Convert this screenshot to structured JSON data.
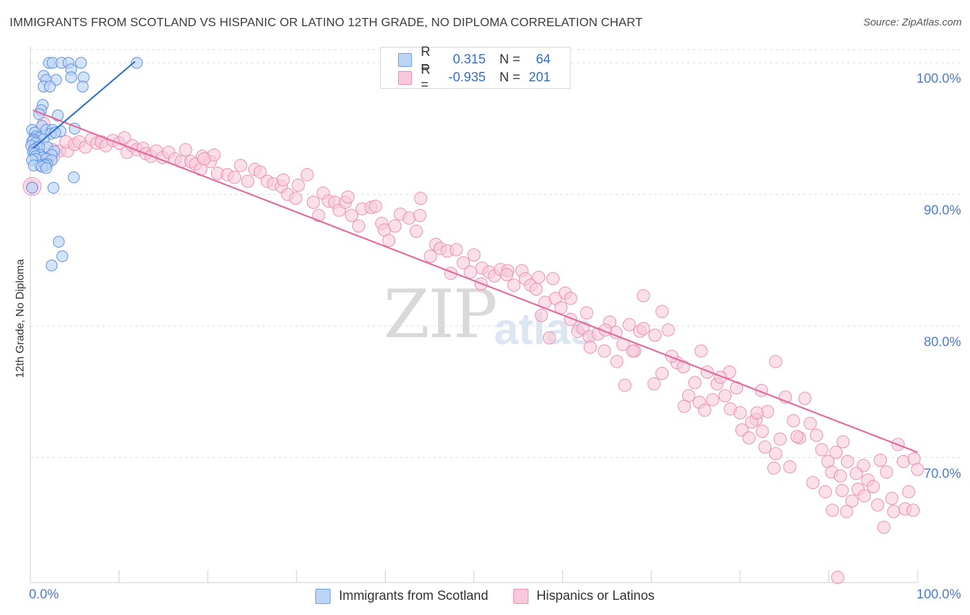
{
  "header": {
    "title": "IMMIGRANTS FROM SCOTLAND VS HISPANIC OR LATINO 12TH GRADE, NO DIPLOMA CORRELATION CHART",
    "source": "Source: ZipAtlas.com"
  },
  "watermark": {
    "zip": "ZIP",
    "atlas": "atlas"
  },
  "colors": {
    "blue_fill": "#bcd4f7",
    "blue_stroke": "#5b8fe0",
    "blue_line": "#2f72d4",
    "pink_fill": "#f8c9da",
    "pink_stroke": "#ec8fb0",
    "pink_line": "#e4699a",
    "tick_text": "#4a7bd0",
    "grid": "#dddddd"
  },
  "stats_legend": {
    "rows": [
      {
        "r_label": "R =",
        "r_value": "0.315",
        "n_label": "N =",
        "n_value": "64"
      },
      {
        "r_label": "R =",
        "r_value": "-0.935",
        "n_label": "N =",
        "n_value": "201"
      }
    ]
  },
  "chart_data": {
    "type": "scatter",
    "title": "IMMIGRANTS FROM SCOTLAND VS HISPANIC OR LATINO 12TH GRADE, NO DIPLOMA CORRELATION CHART",
    "xlabel": "",
    "ylabel": "12th Grade, No Diploma",
    "xlim": [
      0,
      100
    ],
    "ylim": [
      60.5,
      101
    ],
    "x_tick_labels": [
      "0.0%",
      "100.0%"
    ],
    "y_ticks": [
      70,
      80,
      90,
      100
    ],
    "y_tick_labels": [
      "70.0%",
      "80.0%",
      "90.0%",
      "100.0%"
    ],
    "grid": true,
    "legend_position": "bottom-center",
    "series": [
      {
        "name": "Immigrants from Scotland",
        "color": "blue",
        "r": 0.315,
        "n": 64,
        "trend": {
          "x": [
            0.3,
            11.8
          ],
          "y": [
            93.5,
            100.1
          ]
        },
        "points": [
          [
            2.1,
            100.0
          ],
          [
            2.5,
            100.0
          ],
          [
            3.5,
            100.0
          ],
          [
            4.3,
            100.0
          ],
          [
            5.7,
            100.0
          ],
          [
            12.0,
            100.0
          ],
          [
            4.6,
            99.5
          ],
          [
            1.5,
            99.0
          ],
          [
            4.6,
            98.9
          ],
          [
            6.0,
            98.9
          ],
          [
            1.8,
            98.7
          ],
          [
            2.9,
            98.7
          ],
          [
            1.5,
            98.2
          ],
          [
            2.2,
            98.2
          ],
          [
            5.9,
            98.2
          ],
          [
            1.4,
            96.8
          ],
          [
            1.2,
            96.4
          ],
          [
            1.0,
            96.1
          ],
          [
            3.1,
            96.0
          ],
          [
            1.3,
            95.2
          ],
          [
            0.2,
            94.9
          ],
          [
            1.8,
            94.9
          ],
          [
            2.5,
            94.9
          ],
          [
            3.4,
            94.8
          ],
          [
            0.5,
            94.7
          ],
          [
            2.3,
            94.6
          ],
          [
            0.6,
            94.4
          ],
          [
            1.0,
            94.3
          ],
          [
            0.4,
            94.2
          ],
          [
            1.5,
            94.2
          ],
          [
            0.3,
            94.1
          ],
          [
            0.2,
            94.0
          ],
          [
            0.6,
            93.9
          ],
          [
            0.1,
            93.7
          ],
          [
            0.8,
            93.6
          ],
          [
            1.9,
            93.6
          ],
          [
            1.0,
            93.6
          ],
          [
            0.4,
            93.4
          ],
          [
            2.7,
            93.3
          ],
          [
            0.3,
            93.2
          ],
          [
            0.5,
            93.1
          ],
          [
            1.1,
            93.0
          ],
          [
            2.4,
            93.0
          ],
          [
            0.6,
            92.9
          ],
          [
            1.4,
            92.8
          ],
          [
            0.6,
            92.7
          ],
          [
            1.8,
            92.7
          ],
          [
            0.2,
            92.6
          ],
          [
            2.4,
            92.6
          ],
          [
            1.6,
            92.3
          ],
          [
            1.9,
            92.3
          ],
          [
            1.1,
            92.2
          ],
          [
            0.4,
            92.2
          ],
          [
            1.7,
            92.2
          ],
          [
            1.3,
            92.1
          ],
          [
            1.8,
            92.0
          ],
          [
            4.9,
            91.3
          ],
          [
            0.2,
            90.5
          ],
          [
            2.6,
            90.5
          ],
          [
            3.2,
            86.4
          ],
          [
            3.6,
            85.3
          ],
          [
            2.4,
            84.6
          ],
          [
            5.0,
            95.0
          ],
          [
            2.8,
            94.7
          ]
        ]
      },
      {
        "name": "Hispanics or Latinos",
        "color": "pink",
        "r": -0.935,
        "n": 201,
        "trend": {
          "x": [
            0.3,
            100.0
          ],
          "y": [
            96.4,
            70.4
          ]
        },
        "points": [
          [
            0.2,
            90.6
          ],
          [
            1.5,
            95.4
          ],
          [
            2.5,
            93.4
          ],
          [
            3.3,
            93.3
          ],
          [
            4.2,
            93.3
          ],
          [
            1.2,
            92.3
          ],
          [
            1.8,
            92.7
          ],
          [
            2.6,
            92.9
          ],
          [
            4.0,
            94.0
          ],
          [
            5.0,
            93.8
          ],
          [
            5.5,
            94.0
          ],
          [
            6.2,
            93.6
          ],
          [
            6.9,
            94.2
          ],
          [
            7.5,
            93.9
          ],
          [
            8.0,
            94.0
          ],
          [
            8.5,
            93.7
          ],
          [
            9.3,
            94.1
          ],
          [
            10.0,
            93.9
          ],
          [
            10.6,
            94.3
          ],
          [
            10.9,
            93.2
          ],
          [
            11.5,
            93.7
          ],
          [
            12.0,
            93.4
          ],
          [
            12.7,
            93.5
          ],
          [
            13.0,
            93.1
          ],
          [
            13.6,
            92.9
          ],
          [
            14.2,
            93.3
          ],
          [
            14.9,
            92.8
          ],
          [
            15.6,
            93.2
          ],
          [
            16.3,
            92.7
          ],
          [
            17.0,
            92.5
          ],
          [
            17.5,
            93.4
          ],
          [
            18.1,
            92.5
          ],
          [
            18.6,
            92.3
          ],
          [
            19.4,
            92.9
          ],
          [
            19.2,
            91.9
          ],
          [
            20.3,
            92.5
          ],
          [
            20.7,
            93.0
          ],
          [
            19.6,
            92.7
          ],
          [
            21.1,
            91.6
          ],
          [
            22.2,
            91.5
          ],
          [
            23.0,
            91.3
          ],
          [
            23.7,
            92.2
          ],
          [
            24.5,
            91.0
          ],
          [
            25.3,
            91.9
          ],
          [
            25.9,
            91.7
          ],
          [
            26.7,
            91.0
          ],
          [
            27.4,
            90.8
          ],
          [
            28.3,
            90.6
          ],
          [
            28.5,
            91.1
          ],
          [
            29.0,
            90.0
          ],
          [
            29.9,
            89.7
          ],
          [
            30.2,
            90.7
          ],
          [
            31.2,
            91.5
          ],
          [
            31.9,
            89.4
          ],
          [
            32.5,
            88.4
          ],
          [
            33.0,
            90.1
          ],
          [
            33.6,
            89.5
          ],
          [
            34.3,
            89.4
          ],
          [
            34.8,
            88.8
          ],
          [
            35.5,
            89.4
          ],
          [
            35.8,
            89.8
          ],
          [
            36.2,
            88.4
          ],
          [
            37.0,
            87.6
          ],
          [
            37.4,
            88.9
          ],
          [
            38.4,
            89.0
          ],
          [
            38.9,
            89.1
          ],
          [
            39.6,
            87.8
          ],
          [
            39.9,
            87.3
          ],
          [
            40.4,
            86.5
          ],
          [
            41.1,
            87.6
          ],
          [
            41.7,
            88.5
          ],
          [
            42.7,
            88.2
          ],
          [
            43.5,
            87.2
          ],
          [
            43.9,
            88.4
          ],
          [
            44.0,
            89.7
          ],
          [
            45.1,
            85.3
          ],
          [
            45.7,
            86.2
          ],
          [
            46.2,
            85.9
          ],
          [
            47.0,
            85.7
          ],
          [
            47.4,
            84.0
          ],
          [
            48.0,
            85.8
          ],
          [
            48.8,
            84.8
          ],
          [
            49.6,
            84.1
          ],
          [
            50.0,
            85.4
          ],
          [
            50.8,
            83.2
          ],
          [
            50.9,
            84.4
          ],
          [
            51.7,
            84.1
          ],
          [
            52.3,
            83.8
          ],
          [
            53.0,
            84.3
          ],
          [
            53.8,
            84.2
          ],
          [
            54.5,
            83.1
          ],
          [
            55.4,
            84.2
          ],
          [
            55.8,
            83.6
          ],
          [
            56.4,
            83.1
          ],
          [
            57.0,
            82.8
          ],
          [
            57.3,
            83.7
          ],
          [
            58.0,
            81.8
          ],
          [
            58.9,
            83.6
          ],
          [
            59.2,
            82.1
          ],
          [
            59.8,
            81.4
          ],
          [
            60.3,
            82.5
          ],
          [
            60.9,
            80.5
          ],
          [
            61.7,
            79.6
          ],
          [
            62.3,
            79.8
          ],
          [
            63.0,
            79.2
          ],
          [
            64.0,
            79.4
          ],
          [
            64.7,
            78.1
          ],
          [
            65.3,
            80.3
          ],
          [
            66.0,
            79.5
          ],
          [
            66.8,
            78.6
          ],
          [
            67.5,
            80.1
          ],
          [
            68.1,
            78.1
          ],
          [
            68.7,
            79.6
          ],
          [
            69.1,
            82.3
          ],
          [
            70.3,
            75.6
          ],
          [
            70.4,
            79.3
          ],
          [
            71.2,
            81.1
          ],
          [
            71.9,
            79.7
          ],
          [
            72.9,
            77.2
          ],
          [
            73.6,
            76.9
          ],
          [
            74.2,
            74.7
          ],
          [
            74.9,
            75.7
          ],
          [
            75.6,
            78.1
          ],
          [
            76.3,
            76.5
          ],
          [
            76.9,
            74.4
          ],
          [
            77.4,
            75.6
          ],
          [
            78.3,
            74.7
          ],
          [
            78.8,
            76.5
          ],
          [
            79.6,
            75.3
          ],
          [
            80.2,
            72.1
          ],
          [
            81.0,
            71.5
          ],
          [
            81.8,
            72.9
          ],
          [
            82.4,
            75.1
          ],
          [
            82.5,
            72.0
          ],
          [
            83.1,
            73.5
          ],
          [
            84.0,
            70.3
          ],
          [
            84.5,
            71.4
          ],
          [
            85.1,
            74.6
          ],
          [
            86.0,
            72.8
          ],
          [
            86.7,
            71.5
          ],
          [
            87.3,
            74.5
          ],
          [
            87.9,
            72.6
          ],
          [
            88.6,
            71.7
          ],
          [
            89.2,
            70.6
          ],
          [
            89.9,
            69.7
          ],
          [
            90.3,
            68.9
          ],
          [
            90.8,
            70.4
          ],
          [
            91.3,
            68.6
          ],
          [
            91.6,
            71.2
          ],
          [
            92.1,
            69.7
          ],
          [
            92.6,
            66.7
          ],
          [
            93.3,
            67.6
          ],
          [
            93.9,
            69.4
          ],
          [
            94.4,
            68.3
          ],
          [
            95.0,
            67.8
          ],
          [
            95.8,
            69.8
          ],
          [
            96.5,
            68.9
          ],
          [
            97.1,
            66.9
          ],
          [
            97.8,
            71.0
          ],
          [
            98.4,
            69.7
          ],
          [
            99.0,
            67.4
          ],
          [
            99.6,
            69.9
          ],
          [
            100.0,
            69.1
          ],
          [
            53.7,
            83.9
          ],
          [
            57.6,
            80.8
          ],
          [
            58.5,
            79.1
          ],
          [
            60.9,
            82.1
          ],
          [
            62.7,
            81.0
          ],
          [
            63.1,
            78.4
          ],
          [
            64.8,
            79.7
          ],
          [
            66.1,
            77.3
          ],
          [
            67.0,
            75.5
          ],
          [
            67.9,
            78.1
          ],
          [
            69.1,
            79.8
          ],
          [
            71.2,
            76.4
          ],
          [
            72.3,
            77.7
          ],
          [
            73.7,
            73.9
          ],
          [
            75.4,
            74.2
          ],
          [
            76.0,
            73.6
          ],
          [
            77.8,
            76.1
          ],
          [
            78.9,
            73.7
          ],
          [
            80.0,
            73.4
          ],
          [
            81.3,
            72.7
          ],
          [
            82.8,
            70.8
          ],
          [
            83.8,
            69.2
          ],
          [
            85.6,
            69.3
          ],
          [
            86.4,
            71.6
          ],
          [
            88.2,
            68.1
          ],
          [
            89.6,
            67.4
          ],
          [
            90.4,
            66.0
          ],
          [
            91.5,
            67.5
          ],
          [
            92.0,
            65.9
          ],
          [
            93.1,
            68.8
          ],
          [
            94.0,
            67.1
          ],
          [
            95.5,
            66.4
          ],
          [
            96.2,
            64.7
          ],
          [
            97.3,
            65.9
          ],
          [
            98.6,
            66.1
          ],
          [
            91.0,
            60.9
          ],
          [
            99.5,
            66.0
          ],
          [
            81.9,
            73.4
          ],
          [
            84.0,
            77.3
          ]
        ]
      }
    ]
  },
  "bottom_legend": {
    "items": [
      {
        "label": "Immigrants from Scotland"
      },
      {
        "label": "Hispanics or Latinos"
      }
    ]
  }
}
